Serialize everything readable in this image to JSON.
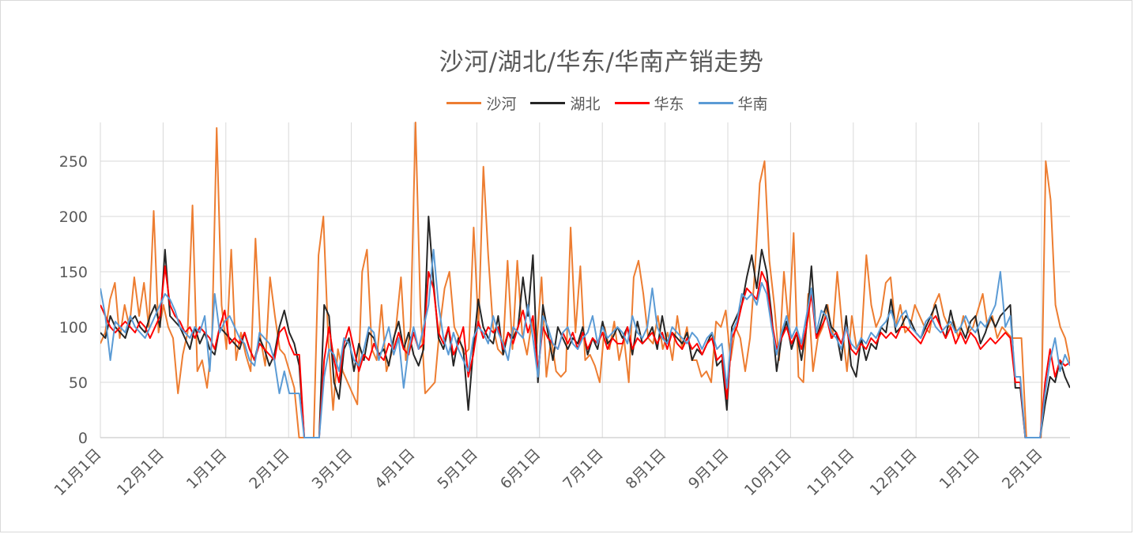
{
  "chart_data": {
    "type": "line",
    "title": "沙河/湖北/华东/华南产销走势",
    "xlabel": "",
    "ylabel": "",
    "ylim": [
      0,
      285
    ],
    "y_ticks": [
      0,
      50,
      100,
      150,
      200,
      250
    ],
    "x_ticks": [
      "11月1日",
      "12月1日",
      "1月1日",
      "2月1日",
      "3月1日",
      "4月1日",
      "5月1日",
      "6月1日",
      "7月1日",
      "8月1日",
      "9月1日",
      "10月1日",
      "11月1日",
      "12月1日",
      "1月1日",
      "2月1日"
    ],
    "grid": true,
    "legend_position": "top",
    "series": [
      {
        "name": "沙河",
        "color": "#ED7D31",
        "values": [
          85,
          95,
          125,
          140,
          90,
          120,
          100,
          145,
          110,
          140,
          100,
          205,
          95,
          120,
          100,
          90,
          40,
          75,
          95,
          210,
          60,
          70,
          45,
          85,
          280,
          120,
          80,
          170,
          70,
          95,
          75,
          60,
          180,
          90,
          65,
          145,
          110,
          80,
          75,
          60,
          45,
          0,
          0,
          0,
          0,
          165,
          200,
          90,
          25,
          80,
          60,
          50,
          40,
          30,
          150,
          170,
          80,
          70,
          120,
          60,
          75,
          100,
          145,
          70,
          100,
          285,
          120,
          40,
          45,
          50,
          100,
          135,
          150,
          100,
          90,
          75,
          80,
          190,
          100,
          245,
          165,
          100,
          80,
          75,
          160,
          80,
          160,
          95,
          75,
          105,
          85,
          145,
          55,
          90,
          60,
          55,
          60,
          190,
          95,
          155,
          70,
          75,
          65,
          50,
          100,
          80,
          105,
          70,
          90,
          50,
          145,
          160,
          130,
          90,
          85,
          110,
          80,
          95,
          70,
          110,
          80,
          100,
          70,
          70,
          55,
          60,
          50,
          105,
          100,
          115,
          70,
          100,
          90,
          60,
          90,
          150,
          230,
          250,
          160,
          120,
          70,
          150,
          100,
          185,
          55,
          50,
          130,
          60,
          90,
          100,
          120,
          90,
          150,
          100,
          60,
          110,
          80,
          90,
          165,
          120,
          100,
          110,
          140,
          145,
          100,
          120,
          95,
          100,
          120,
          110,
          100,
          95,
          120,
          130,
          110,
          100,
          105,
          90,
          110,
          95,
          100,
          115,
          130,
          100,
          110,
          90,
          100,
          95,
          90,
          90,
          90,
          0,
          0,
          0,
          0,
          250,
          215,
          120,
          100,
          90,
          68
        ]
      },
      {
        "name": "湖北",
        "color": "#262626",
        "values": [
          95,
          90,
          110,
          100,
          95,
          90,
          105,
          110,
          100,
          95,
          110,
          120,
          100,
          170,
          110,
          105,
          100,
          90,
          80,
          100,
          85,
          95,
          80,
          75,
          100,
          95,
          90,
          85,
          80,
          95,
          80,
          70,
          90,
          80,
          65,
          75,
          100,
          115,
          95,
          85,
          65,
          0,
          0,
          0,
          0,
          120,
          110,
          50,
          35,
          80,
          90,
          60,
          85,
          70,
          95,
          90,
          75,
          80,
          65,
          90,
          105,
          80,
          95,
          75,
          65,
          80,
          200,
          140,
          90,
          80,
          100,
          65,
          90,
          80,
          25,
          80,
          125,
          100,
          90,
          85,
          110,
          75,
          95,
          90,
          100,
          145,
          110,
          165,
          50,
          120,
          95,
          70,
          100,
          90,
          80,
          90,
          85,
          100,
          75,
          90,
          80,
          105,
          85,
          90,
          100,
          90,
          100,
          75,
          105,
          85,
          90,
          100,
          80,
          110,
          85,
          95,
          90,
          85,
          95,
          70,
          80,
          75,
          85,
          95,
          65,
          70,
          25,
          100,
          110,
          120,
          145,
          165,
          135,
          170,
          150,
          110,
          60,
          90,
          105,
          80,
          95,
          70,
          100,
          155,
          90,
          105,
          120,
          100,
          95,
          70,
          110,
          65,
          55,
          90,
          70,
          85,
          80,
          100,
          95,
          125,
          95,
          100,
          110,
          105,
          95,
          90,
          100,
          110,
          120,
          100,
          90,
          115,
          95,
          100,
          90,
          105,
          110,
          85,
          95,
          110,
          100,
          110,
          115,
          120,
          45,
          45,
          0,
          0,
          0,
          0,
          30,
          55,
          50,
          70,
          55,
          45
        ]
      },
      {
        "name": "华东",
        "color": "#FF0000",
        "values": [
          120,
          110,
          100,
          95,
          100,
          105,
          100,
          95,
          105,
          100,
          90,
          100,
          110,
          155,
          120,
          110,
          105,
          95,
          100,
          90,
          100,
          95,
          90,
          80,
          100,
          115,
          85,
          90,
          85,
          95,
          80,
          70,
          85,
          80,
          75,
          70,
          95,
          100,
          85,
          75,
          75,
          0,
          0,
          0,
          0,
          70,
          100,
          70,
          50,
          85,
          100,
          80,
          60,
          75,
          70,
          85,
          75,
          70,
          85,
          80,
          95,
          80,
          75,
          95,
          80,
          85,
          150,
          135,
          95,
          85,
          100,
          75,
          85,
          100,
          55,
          75,
          105,
          90,
          100,
          95,
          100,
          80,
          95,
          85,
          100,
          115,
          95,
          110,
          60,
          100,
          90,
          85,
          80,
          95,
          85,
          95,
          80,
          95,
          80,
          90,
          85,
          95,
          80,
          90,
          85,
          85,
          100,
          80,
          90,
          85,
          90,
          95,
          85,
          95,
          80,
          95,
          85,
          80,
          90,
          80,
          85,
          75,
          85,
          90,
          70,
          75,
          35,
          90,
          100,
          120,
          135,
          130,
          125,
          150,
          140,
          105,
          80,
          90,
          100,
          85,
          95,
          80,
          100,
          130,
          90,
          100,
          110,
          90,
          95,
          85,
          100,
          80,
          75,
          85,
          80,
          90,
          85,
          95,
          90,
          95,
          90,
          100,
          100,
          95,
          90,
          85,
          95,
          105,
          110,
          100,
          90,
          100,
          85,
          95,
          85,
          95,
          90,
          80,
          85,
          90,
          85,
          90,
          95,
          90,
          50,
          50,
          0,
          0,
          0,
          0,
          50,
          80,
          55,
          70,
          65,
          68
        ]
      },
      {
        "name": "华南",
        "color": "#5B9BD5",
        "values": [
          135,
          110,
          70,
          105,
          100,
          95,
          110,
          100,
          95,
          90,
          100,
          110,
          120,
          130,
          125,
          115,
          100,
          95,
          90,
          100,
          95,
          110,
          60,
          130,
          95,
          105,
          110,
          100,
          90,
          85,
          70,
          65,
          95,
          90,
          85,
          70,
          40,
          60,
          40,
          40,
          40,
          0,
          0,
          0,
          0,
          55,
          80,
          75,
          60,
          90,
          85,
          70,
          65,
          80,
          100,
          95,
          70,
          85,
          100,
          75,
          90,
          45,
          80,
          100,
          80,
          100,
          120,
          170,
          120,
          90,
          75,
          95,
          80,
          70,
          60,
          90,
          100,
          95,
          85,
          110,
          95,
          85,
          70,
          100,
          95,
          90,
          120,
          90,
          55,
          110,
          100,
          85,
          80,
          95,
          100,
          85,
          80,
          90,
          95,
          110,
          85,
          100,
          90,
          95,
          100,
          95,
          85,
          110,
          95,
          90,
          100,
          135,
          100,
          90,
          85,
          100,
          95,
          90,
          85,
          95,
          90,
          80,
          90,
          95,
          80,
          85,
          45,
          95,
          105,
          130,
          125,
          130,
          120,
          140,
          130,
          100,
          75,
          95,
          110,
          90,
          100,
          85,
          110,
          135,
          95,
          115,
          110,
          95,
          90,
          80,
          100,
          85,
          80,
          90,
          85,
          95,
          90,
          100,
          105,
          115,
          100,
          110,
          115,
          100,
          95,
          90,
          105,
          110,
          100,
          95,
          100,
          105,
          95,
          100,
          110,
          100,
          95,
          105,
          100,
          110,
          120,
          150,
          100,
          110,
          55,
          55,
          0,
          0,
          0,
          0,
          40,
          70,
          90,
          60,
          75,
          65
        ]
      }
    ]
  }
}
